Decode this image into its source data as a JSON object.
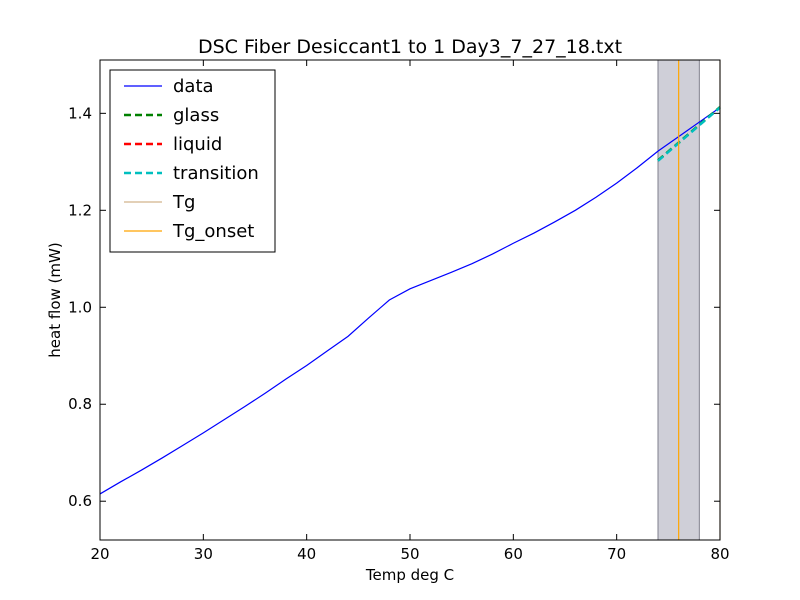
{
  "chart_data": {
    "type": "line",
    "title": "DSC Fiber Desiccant1 to 1 Day3_7_27_18.txt",
    "xlabel": "Temp deg C",
    "ylabel": "heat flow (mW)",
    "xlim": [
      20,
      80
    ],
    "ylim": [
      0.52,
      1.51
    ],
    "xticks": [
      20,
      30,
      40,
      50,
      60,
      70,
      80
    ],
    "yticks": [
      0.6,
      0.8,
      1.0,
      1.2,
      1.4
    ],
    "xtick_labels": [
      "20",
      "30",
      "40",
      "50",
      "60",
      "70",
      "80"
    ],
    "ytick_labels": [
      "0.6",
      "0.8",
      "1.0",
      "1.2",
      "1.4"
    ],
    "grid": false,
    "legend_position": "top-left",
    "shaded_region": {
      "x": [
        74.0,
        78.0
      ],
      "color": "#cfcfd8"
    },
    "series": [
      {
        "name": "data",
        "style": "solid",
        "color": "#0000ff",
        "x": [
          20,
          22,
          24,
          26,
          28,
          30,
          32,
          34,
          36,
          38,
          40,
          42,
          44,
          46,
          48,
          50,
          52,
          54,
          56,
          58,
          60,
          62,
          64,
          66,
          68,
          70,
          72,
          74,
          76,
          78,
          80
        ],
        "y": [
          0.615,
          0.64,
          0.664,
          0.689,
          0.715,
          0.741,
          0.768,
          0.795,
          0.823,
          0.852,
          0.88,
          0.91,
          0.94,
          0.978,
          1.015,
          1.038,
          1.055,
          1.072,
          1.09,
          1.11,
          1.132,
          1.153,
          1.176,
          1.2,
          1.227,
          1.256,
          1.288,
          1.322,
          1.352,
          1.382,
          1.412
        ]
      },
      {
        "name": "glass",
        "style": "dashed",
        "color": "#008000",
        "x": [
          74,
          80
        ],
        "y": [
          1.303,
          1.413
        ]
      },
      {
        "name": "liquid",
        "style": "dashed",
        "color": "#ff0000",
        "x": [],
        "y": []
      },
      {
        "name": "transition",
        "style": "dashed",
        "color": "#00bfbf",
        "x": [
          74,
          80
        ],
        "y": [
          1.302,
          1.412
        ]
      },
      {
        "name": "Tg",
        "style": "vline",
        "color": "#d2b48c",
        "x": [
          80.0
        ]
      },
      {
        "name": "Tg_onset",
        "style": "vline",
        "color": "#ffa500",
        "x": [
          76.0
        ]
      }
    ]
  }
}
